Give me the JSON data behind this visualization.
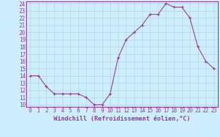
{
  "x": [
    0,
    1,
    2,
    3,
    4,
    5,
    6,
    7,
    8,
    9,
    10,
    11,
    12,
    13,
    14,
    15,
    16,
    17,
    18,
    19,
    20,
    21,
    22,
    23
  ],
  "y": [
    14,
    14,
    12.5,
    11.5,
    11.5,
    11.5,
    11.5,
    11.0,
    10.0,
    10.0,
    11.5,
    16.5,
    19.0,
    20.0,
    21.0,
    22.5,
    22.5,
    24.0,
    23.5,
    23.5,
    22.0,
    18.0,
    16.0,
    15.0
  ],
  "line_color": "#993399",
  "marker": "+",
  "bg_color": "#cceeff",
  "grid_color": "#aacccc",
  "xlabel": "Windchill (Refroidissement éolien,°C)",
  "ylim": [
    10,
    24
  ],
  "xlim": [
    -0.5,
    23.5
  ],
  "yticks": [
    10,
    11,
    12,
    13,
    14,
    15,
    16,
    17,
    18,
    19,
    20,
    21,
    22,
    23,
    24
  ],
  "xticks": [
    0,
    1,
    2,
    3,
    4,
    5,
    6,
    7,
    8,
    9,
    10,
    11,
    12,
    13,
    14,
    15,
    16,
    17,
    18,
    19,
    20,
    21,
    22,
    23
  ],
  "tick_fontsize": 5.5,
  "xlabel_fontsize": 6.5
}
